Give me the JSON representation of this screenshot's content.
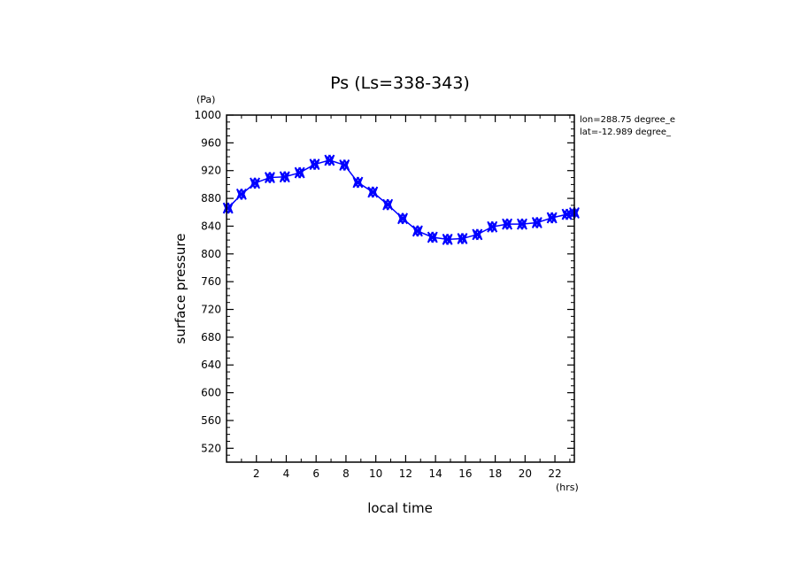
{
  "chart_data": {
    "type": "line",
    "title": "Ps (Ls=338-343)",
    "xlabel": "local time",
    "ylabel": "surface pressure",
    "x_unit": "(hrs)",
    "y_unit": "(Pa)",
    "xlim": [
      0,
      23.3
    ],
    "ylim": [
      500,
      1000
    ],
    "x_ticks": [
      2,
      4,
      6,
      8,
      10,
      12,
      14,
      16,
      18,
      20,
      22
    ],
    "y_ticks": [
      520,
      560,
      600,
      640,
      680,
      720,
      760,
      800,
      840,
      880,
      920,
      960,
      1000
    ],
    "annotations": [
      "lon=288.75 degree_e",
      "lat=-12.989 degree_"
    ],
    "series_color": "#0000ff",
    "series": [
      {
        "x": [
          0.1,
          1.0,
          1.9,
          2.9,
          3.9,
          4.9,
          5.9,
          6.9,
          7.9,
          8.8,
          9.8,
          10.8,
          11.8,
          12.8,
          13.8,
          14.8,
          15.8,
          16.8,
          17.8,
          18.8,
          19.8,
          20.8,
          21.8,
          22.8,
          23.3
        ],
        "y": [
          866,
          886,
          902,
          910,
          911,
          917,
          929,
          935,
          928,
          903,
          889,
          871,
          851,
          833,
          824,
          821,
          822,
          828,
          839,
          843,
          843,
          845,
          852,
          857,
          859
        ]
      }
    ]
  }
}
